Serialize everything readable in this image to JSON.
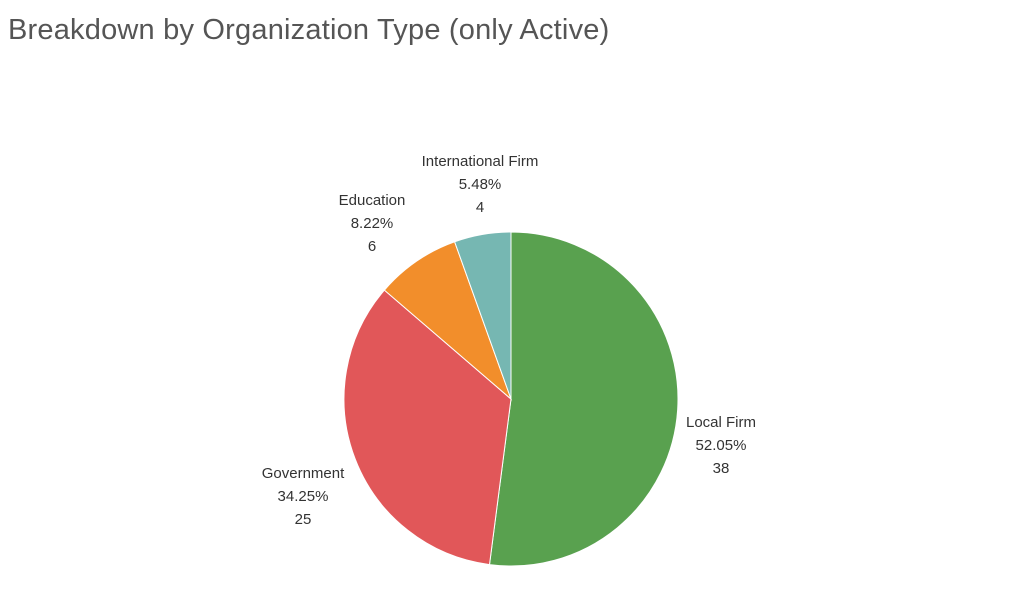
{
  "chart_data": {
    "type": "pie",
    "title": "Breakdown by Organization Type (only Active)",
    "start_angle_deg": 0,
    "direction": "clockwise",
    "slices": [
      {
        "name": "Local Firm",
        "value": 38,
        "percent": "52.05%",
        "color": "#59a14f"
      },
      {
        "name": "Government",
        "value": 25,
        "percent": "34.25%",
        "color": "#e15759"
      },
      {
        "name": "Education",
        "value": 6,
        "percent": "8.22%",
        "color": "#f28e2b"
      },
      {
        "name": "International Firm",
        "value": 4,
        "percent": "5.48%",
        "color": "#76b7b2"
      }
    ],
    "labels": {
      "local_firm": {
        "name": "Local Firm",
        "percent": "52.05%",
        "value": "38"
      },
      "government": {
        "name": "Government",
        "percent": "34.25%",
        "value": "25"
      },
      "education": {
        "name": "Education",
        "percent": "8.22%",
        "value": "6"
      },
      "international_firm": {
        "name": "International Firm",
        "percent": "5.48%",
        "value": "4"
      }
    }
  }
}
